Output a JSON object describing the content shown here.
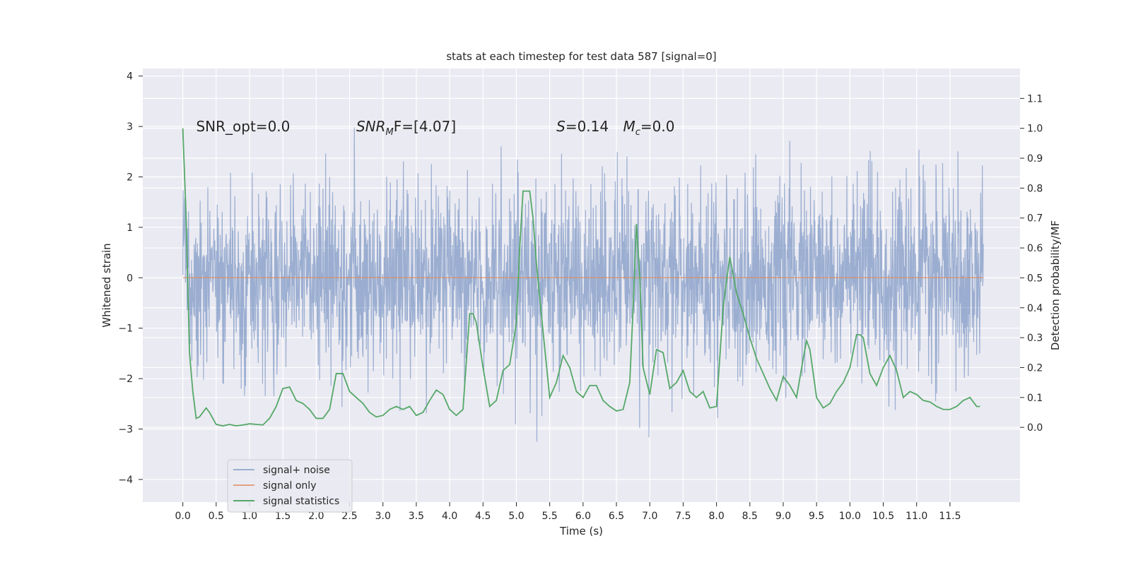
{
  "chart_data": {
    "type": "line",
    "title": "stats at each timestep for test data 587 [signal=0]",
    "xlabel": "Time (s)",
    "ylabel_left": "Whitened strain",
    "ylabel_right": "Detection probability/MF",
    "xlim": [
      -0.6,
      12.55
    ],
    "ylim_left": [
      -4.45,
      4.15
    ],
    "ylim_right": [
      -0.25,
      1.2
    ],
    "x_ticks": [
      0.0,
      0.5,
      1.0,
      1.5,
      2.0,
      2.5,
      3.0,
      3.5,
      4.0,
      4.5,
      5.0,
      5.5,
      6.0,
      6.5,
      7.0,
      7.5,
      8.0,
      8.5,
      9.0,
      9.5,
      10.0,
      10.5,
      11.0,
      11.5
    ],
    "x_tick_labels": [
      "0.0",
      "0.5",
      "1.0",
      "1.5",
      "2.0",
      "2.5",
      "3.0",
      "3.5",
      "4.0",
      "4.5",
      "5.0",
      "5.5",
      "6.0",
      "6.5",
      "7.0",
      "7.5",
      "8.0",
      "8.5",
      "9.0",
      "9.5",
      "10.0",
      "10.5",
      "11.0",
      "11.5"
    ],
    "y_left_ticks": [
      -4,
      -3,
      -2,
      -1,
      0,
      1,
      2,
      3,
      4
    ],
    "y_left_tick_labels": [
      "−4",
      "−3",
      "−2",
      "−1",
      "0",
      "1",
      "2",
      "3",
      "4"
    ],
    "y_right_ticks": [
      0.0,
      0.1,
      0.2,
      0.3,
      0.4,
      0.5,
      0.6,
      0.7,
      0.8,
      0.9,
      1.0,
      1.1
    ],
    "y_right_tick_labels": [
      "0.0",
      "0.1",
      "0.2",
      "0.3",
      "0.4",
      "0.5",
      "0.6",
      "0.7",
      "0.8",
      "0.9",
      "1.0",
      "1.1"
    ],
    "grid": true,
    "legend_position": "lower-left",
    "series": [
      {
        "name": "signal+ noise",
        "axis": "left",
        "color": "#4c72b0",
        "kind": "noise",
        "x_range": [
          0.0,
          12.0
        ],
        "approx_std": 0.9,
        "approx_range": [
          -4.1,
          3.8
        ]
      },
      {
        "name": "signal only",
        "axis": "left",
        "color": "#dd8452",
        "x": [
          0.0,
          12.0
        ],
        "y": [
          0.0,
          0.0
        ]
      },
      {
        "name": "signal statistics",
        "axis": "right",
        "color": "#55a868",
        "x": [
          0.0,
          0.05,
          0.1,
          0.15,
          0.2,
          0.25,
          0.3,
          0.35,
          0.4,
          0.45,
          0.5,
          0.6,
          0.7,
          0.8,
          0.9,
          1.0,
          1.1,
          1.2,
          1.3,
          1.4,
          1.5,
          1.6,
          1.7,
          1.8,
          1.9,
          2.0,
          2.1,
          2.2,
          2.3,
          2.4,
          2.5,
          2.6,
          2.7,
          2.8,
          2.9,
          3.0,
          3.1,
          3.2,
          3.3,
          3.4,
          3.5,
          3.6,
          3.7,
          3.8,
          3.9,
          4.0,
          4.1,
          4.2,
          4.3,
          4.35,
          4.4,
          4.5,
          4.6,
          4.7,
          4.8,
          4.9,
          5.0,
          5.05,
          5.1,
          5.15,
          5.2,
          5.25,
          5.3,
          5.4,
          5.5,
          5.6,
          5.7,
          5.8,
          5.9,
          6.0,
          6.1,
          6.2,
          6.3,
          6.4,
          6.5,
          6.6,
          6.7,
          6.75,
          6.8,
          6.85,
          6.9,
          7.0,
          7.1,
          7.2,
          7.3,
          7.4,
          7.5,
          7.6,
          7.7,
          7.8,
          7.9,
          8.0,
          8.1,
          8.15,
          8.2,
          8.3,
          8.4,
          8.5,
          8.6,
          8.7,
          8.8,
          8.9,
          9.0,
          9.1,
          9.2,
          9.3,
          9.35,
          9.4,
          9.5,
          9.6,
          9.7,
          9.8,
          9.9,
          10.0,
          10.1,
          10.15,
          10.2,
          10.3,
          10.4,
          10.5,
          10.6,
          10.7,
          10.8,
          10.9,
          11.0,
          11.1,
          11.2,
          11.3,
          11.4,
          11.5,
          11.6,
          11.7,
          11.8,
          11.9,
          11.95
        ],
        "y": [
          1.0,
          0.7,
          0.25,
          0.12,
          0.03,
          0.035,
          0.05,
          0.065,
          0.05,
          0.03,
          0.01,
          0.005,
          0.01,
          0.005,
          0.008,
          0.012,
          0.01,
          0.008,
          0.03,
          0.07,
          0.13,
          0.135,
          0.09,
          0.08,
          0.06,
          0.03,
          0.03,
          0.06,
          0.18,
          0.18,
          0.12,
          0.1,
          0.08,
          0.05,
          0.035,
          0.04,
          0.06,
          0.07,
          0.06,
          0.07,
          0.04,
          0.05,
          0.09,
          0.125,
          0.11,
          0.06,
          0.04,
          0.06,
          0.38,
          0.38,
          0.35,
          0.2,
          0.07,
          0.09,
          0.19,
          0.21,
          0.35,
          0.6,
          0.79,
          0.79,
          0.79,
          0.7,
          0.55,
          0.32,
          0.1,
          0.15,
          0.24,
          0.2,
          0.12,
          0.1,
          0.14,
          0.14,
          0.09,
          0.07,
          0.055,
          0.06,
          0.15,
          0.4,
          0.68,
          0.5,
          0.2,
          0.11,
          0.26,
          0.25,
          0.13,
          0.15,
          0.19,
          0.12,
          0.1,
          0.12,
          0.065,
          0.07,
          0.4,
          0.49,
          0.57,
          0.45,
          0.38,
          0.3,
          0.23,
          0.18,
          0.13,
          0.09,
          0.17,
          0.14,
          0.1,
          0.23,
          0.29,
          0.26,
          0.1,
          0.065,
          0.08,
          0.12,
          0.15,
          0.2,
          0.31,
          0.31,
          0.3,
          0.18,
          0.14,
          0.2,
          0.24,
          0.19,
          0.1,
          0.12,
          0.11,
          0.09,
          0.085,
          0.07,
          0.06,
          0.06,
          0.07,
          0.09,
          0.1,
          0.07,
          0.07
        ]
      }
    ],
    "annotations": [
      {
        "id": "snr_opt",
        "x": 0.2,
        "y": 3.0,
        "axis": "left",
        "text": "SNR_opt=0.0",
        "style": "plain"
      },
      {
        "id": "snr_mf",
        "x": 2.6,
        "y": 3.0,
        "axis": "left",
        "base": "SNR",
        "sub": "M",
        "rest": "F=[4.07]",
        "style": "math"
      },
      {
        "id": "s_value",
        "x": 5.6,
        "y": 3.0,
        "axis": "left",
        "base": "S",
        "rest": "=0.14",
        "style": "math"
      },
      {
        "id": "mc_value",
        "x": 6.6,
        "y": 3.0,
        "axis": "left",
        "base": "M",
        "sub": "c",
        "rest": "=0.0",
        "style": "math"
      }
    ]
  }
}
